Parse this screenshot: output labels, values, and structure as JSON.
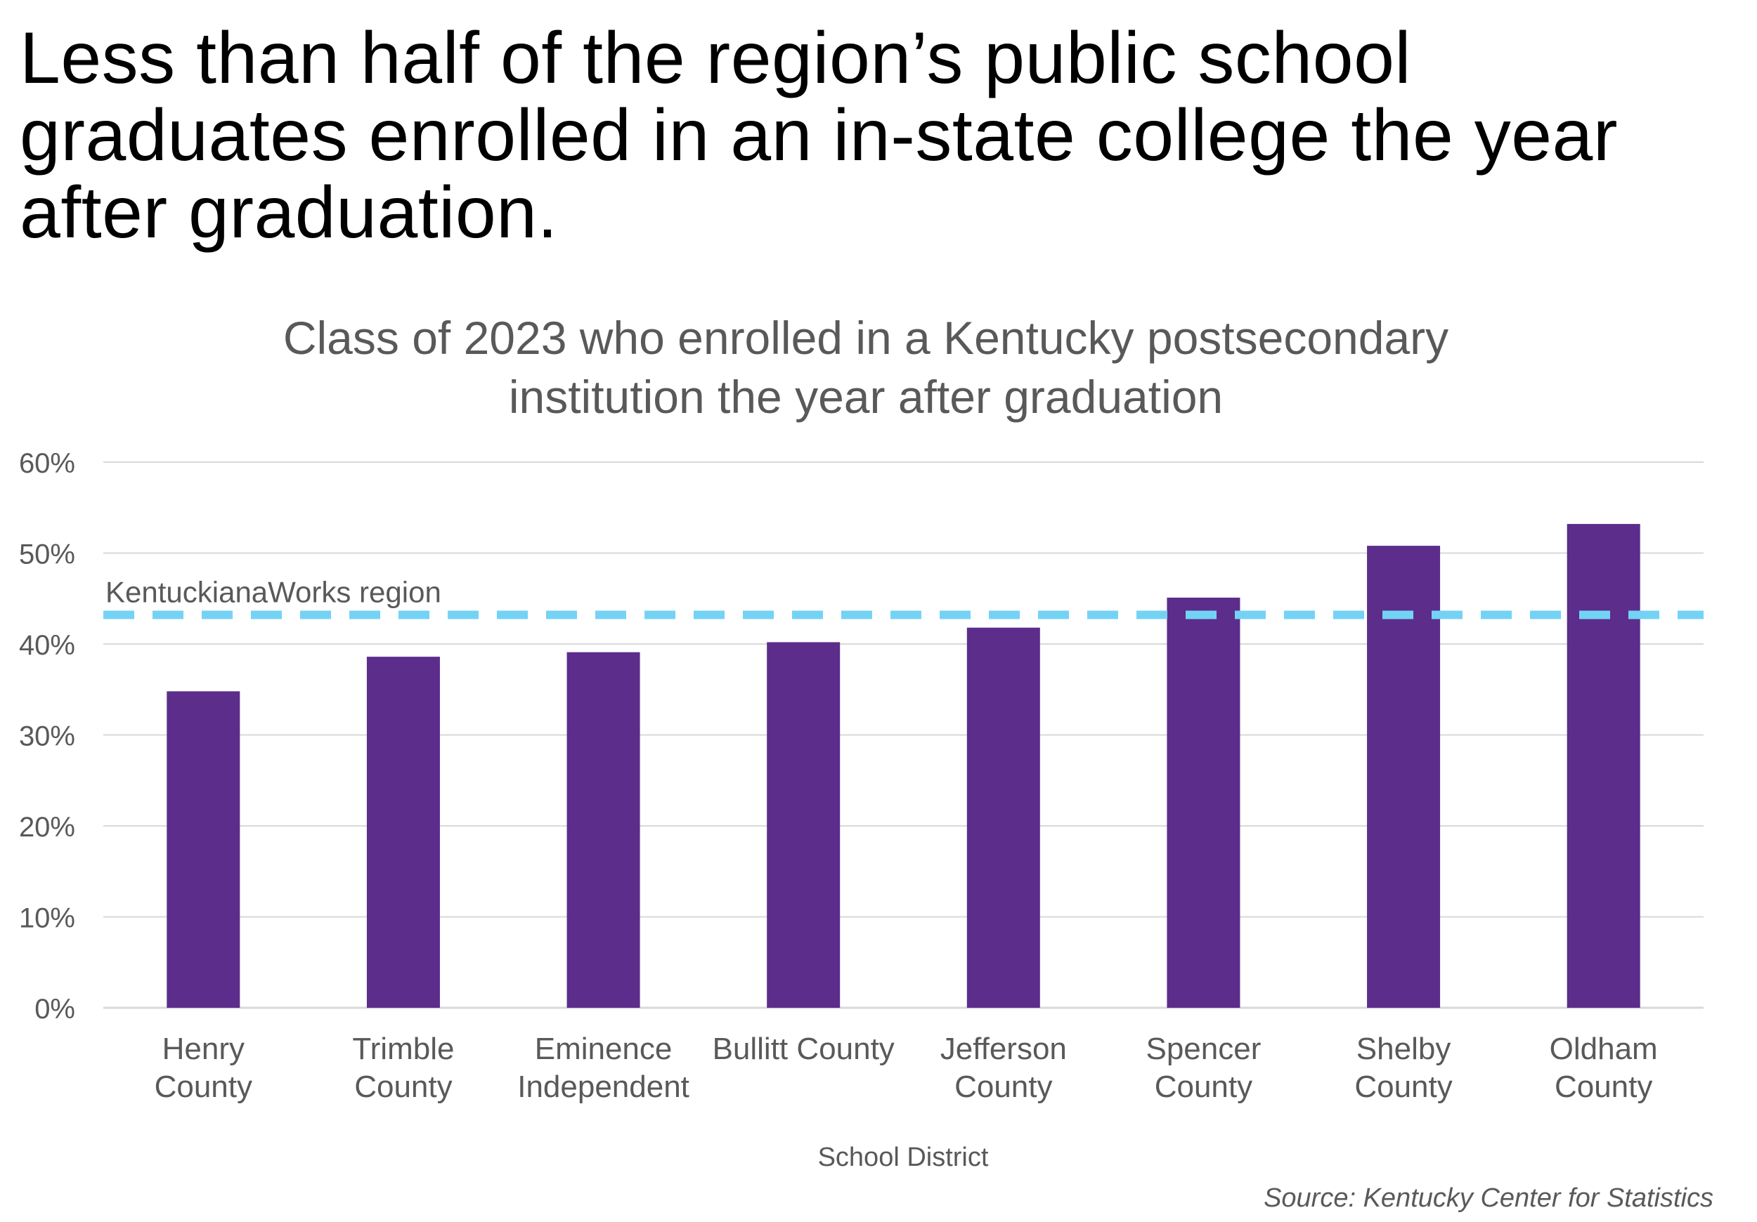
{
  "headline": "Less than half of the region’s public school graduates enrolled in an in-state college the year after graduation.",
  "source": "Source: Kentucky Center for Statistics",
  "colors": {
    "bar": "#5c2d8b",
    "reference_line": "#74d3f5",
    "gridline": "#d9d9d9",
    "axis_text": "#595959"
  },
  "chart_data": {
    "type": "bar",
    "title_lines": [
      "Class of 2023 who enrolled in a Kentucky postsecondary",
      "institution the year after graduation"
    ],
    "xlabel": "School District",
    "ylabel": "",
    "ylim": [
      0,
      60
    ],
    "yticks": [
      0,
      10,
      20,
      30,
      40,
      50,
      60
    ],
    "ytick_labels": [
      "0%",
      "10%",
      "20%",
      "30%",
      "40%",
      "50%",
      "60%"
    ],
    "categories": [
      [
        "Henry",
        "County"
      ],
      [
        "Trimble",
        "County"
      ],
      [
        "Eminence",
        "Independent"
      ],
      [
        "Bullitt County"
      ],
      [
        "Jefferson",
        "County"
      ],
      [
        "Spencer",
        "County"
      ],
      [
        "Shelby",
        "County"
      ],
      [
        "Oldham",
        "County"
      ]
    ],
    "values": [
      34.8,
      38.6,
      39.1,
      40.2,
      41.8,
      45.1,
      50.8,
      53.2
    ],
    "reference_line": {
      "label": "KentuckianaWorks region",
      "value": 43.2
    },
    "grid": true,
    "legend": "none"
  }
}
